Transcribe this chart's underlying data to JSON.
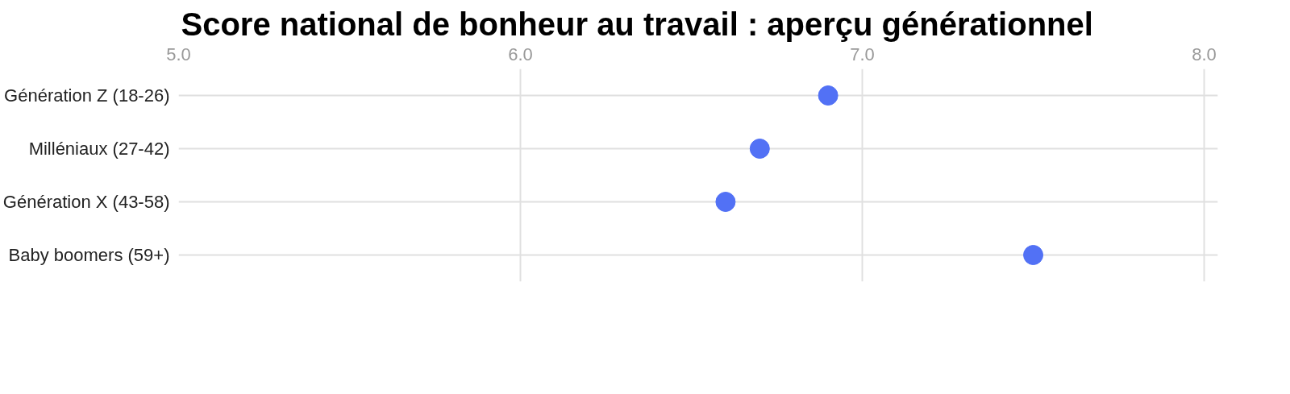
{
  "chart_data": {
    "type": "scatter",
    "orientation": "horizontal",
    "title": "Score national de bonheur au travail : aperçu générationnel",
    "categories": [
      "Génération Z (18-26)",
      "Milléniaux (27-42)",
      "Génération X (43-58)",
      "Baby boomers (59+)"
    ],
    "series": [
      {
        "color": "#5271f5",
        "values": [
          6.9,
          6.7,
          6.6,
          7.5
        ]
      }
    ],
    "xlim": [
      5.0,
      8.04
    ],
    "xticks": [
      {
        "value": 5,
        "label": "5.0"
      },
      {
        "value": 6,
        "label": "6.0"
      },
      {
        "value": 7,
        "label": "7.0"
      },
      {
        "value": 8,
        "label": "8.0"
      }
    ],
    "grid": true,
    "marker": "circle"
  }
}
